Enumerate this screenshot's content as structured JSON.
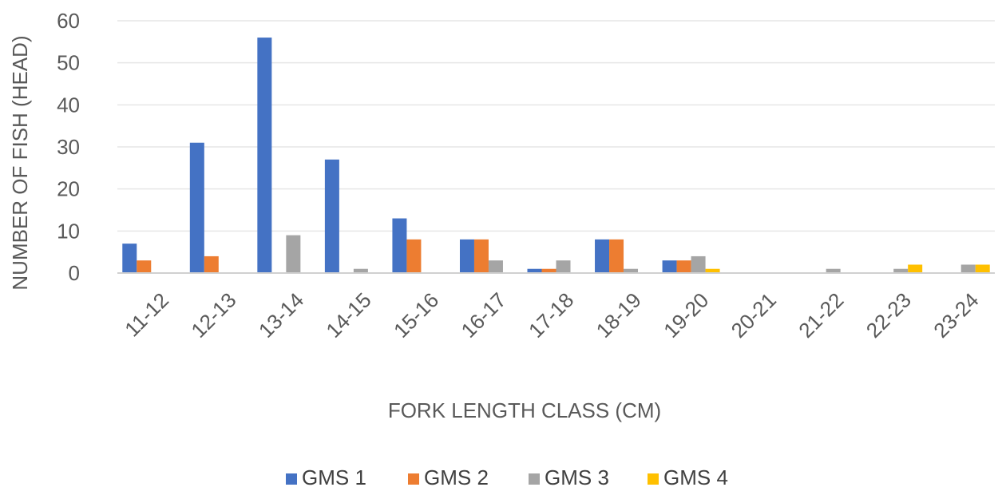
{
  "chart_data": {
    "type": "bar",
    "title": "",
    "xlabel": "FORK LENGTH CLASS (CM)",
    "ylabel": "NUMBER OF FISH (HEAD)",
    "ylim": [
      0,
      60
    ],
    "yticks": [
      0,
      10,
      20,
      30,
      40,
      50,
      60
    ],
    "grid": true,
    "legend_position": "bottom",
    "categories": [
      "11-12",
      "12-13",
      "13-14",
      "14-15",
      "15-16",
      "16-17",
      "17-18",
      "18-19",
      "19-20",
      "20-21",
      "21-22",
      "22-23",
      "23-24"
    ],
    "series": [
      {
        "name": "GMS 1",
        "color": "#4472C4",
        "values": [
          7,
          31,
          56,
          27,
          13,
          8,
          1,
          8,
          3,
          0,
          0,
          0,
          0
        ]
      },
      {
        "name": "GMS 2",
        "color": "#ED7D31",
        "values": [
          3,
          4,
          0,
          0,
          8,
          8,
          1,
          8,
          3,
          0,
          0,
          0,
          0
        ]
      },
      {
        "name": "GMS 3",
        "color": "#A5A5A5",
        "values": [
          0,
          0,
          9,
          1,
          0,
          3,
          3,
          1,
          4,
          0,
          1,
          1,
          2
        ]
      },
      {
        "name": "GMS 4",
        "color": "#FFC000",
        "values": [
          0,
          0,
          0,
          0,
          0,
          0,
          0,
          0,
          1,
          0,
          0,
          2,
          2
        ]
      }
    ]
  }
}
